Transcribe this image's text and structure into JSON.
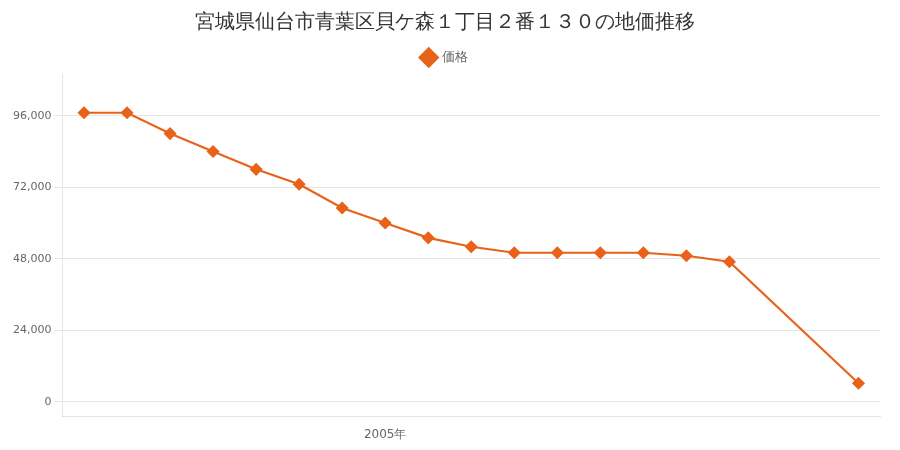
{
  "chart_data": {
    "type": "line",
    "title": "宮城県仙台市青葉区貝ケ森１丁目２番１３０の地価推移",
    "x": [
      1998,
      1999,
      2000,
      2001,
      2002,
      2003,
      2004,
      2005,
      2006,
      2007,
      2008,
      2009,
      2010,
      2011,
      2012,
      2013,
      2016
    ],
    "series": [
      {
        "name": "価格",
        "color": "#e8621a",
        "marker": "diamond",
        "values": [
          97000,
          97000,
          90000,
          84000,
          78000,
          73000,
          65000,
          60000,
          55000,
          52000,
          50000,
          50000,
          50000,
          50000,
          49000,
          47000,
          6200
        ]
      }
    ],
    "xlim": [
      1997.5,
      2016.5
    ],
    "xticks": [
      {
        "value": 2005,
        "label": "2005年"
      }
    ],
    "ylim": [
      -5000,
      110000
    ],
    "yticks": [
      0,
      {
        "value": 24000,
        "label": "24,000"
      },
      {
        "value": 48000,
        "label": "48,000"
      },
      {
        "value": 72000,
        "label": "72,000"
      },
      {
        "value": 96000,
        "label": "96,000"
      }
    ],
    "grid": "y",
    "legend": "top"
  }
}
